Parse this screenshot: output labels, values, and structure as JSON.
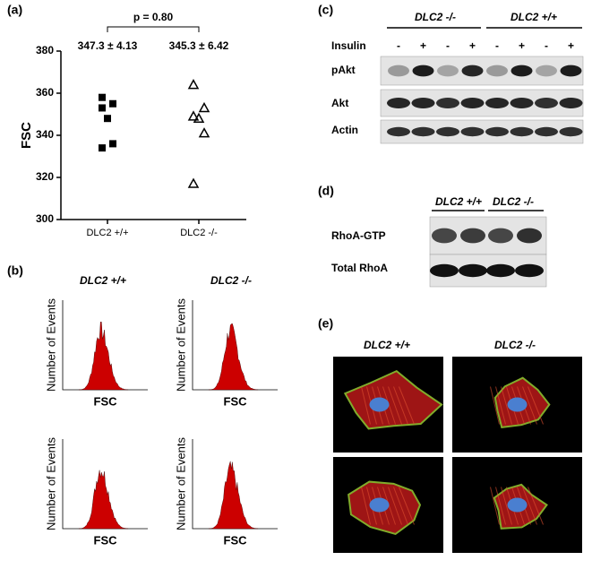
{
  "chart_data": {
    "type": "scatter",
    "panel_label": "(a)",
    "ylabel": "FSC",
    "categories": [
      "DLC2 +/+",
      "DLC2 -/-"
    ],
    "series": [
      {
        "marker": "square",
        "color": "#000000",
        "values": [
          358,
          355,
          353,
          348,
          336,
          334
        ]
      },
      {
        "marker": "triangle",
        "color": "#000000",
        "values": [
          364,
          353,
          349,
          348,
          341,
          317
        ]
      }
    ],
    "ylim": [
      300,
      380
    ],
    "yticks": [
      300,
      320,
      340,
      360,
      380
    ],
    "annotations": {
      "p_value": "p = 0.80",
      "means": [
        "347.3 ± 4.13",
        "345.3 ± 6.42"
      ]
    }
  },
  "histograms": {
    "panel_label": "(b)",
    "columns": [
      "DLC2 +/+",
      "DLC2 -/-"
    ],
    "plots": [
      {
        "ylabel": "Number of Events",
        "xlabel": "FSC"
      },
      {
        "ylabel": "Number of Events",
        "xlabel": "FSC"
      },
      {
        "ylabel": "Number of Events",
        "xlabel": "FSC"
      },
      {
        "ylabel": "Number of Events",
        "xlabel": "FSC"
      }
    ]
  },
  "akt_blot": {
    "panel_label": "(c)",
    "groups": [
      "DLC2 -/-",
      "DLC2 +/+"
    ],
    "treatment": "Insulin",
    "lanes": [
      "-",
      "+",
      "-",
      "+",
      "-",
      "+",
      "-",
      "+"
    ],
    "rows": [
      "pAkt",
      "Akt",
      "Actin"
    ]
  },
  "rhoa_blot": {
    "panel_label": "(d)",
    "groups": [
      "DLC2 +/+",
      "DLC2 -/-"
    ],
    "rows": [
      "RhoA-GTP",
      "Total RhoA"
    ]
  },
  "micrographs": {
    "panel_label": "(e)",
    "columns": [
      "DLC2 +/+",
      "DLC2 -/-"
    ]
  }
}
